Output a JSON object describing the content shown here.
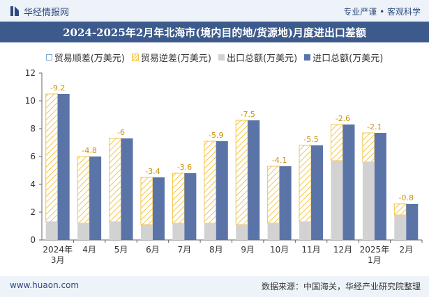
{
  "header": {
    "brand": "华经情报网",
    "tagline": "专业严谨 • 客观科学"
  },
  "title": "2024-2025年2月年北海市(境内目的地/货源地)月度进出口差额",
  "footer": {
    "website": "www.huaon.com",
    "source": "数据来源：中国海关，华经产业研究院整理"
  },
  "colors": {
    "export": "#d2d2d2",
    "import": "#5b74a8",
    "deficit_hatch": "#f2c54a",
    "surplus_border": "#7aa6d6",
    "title_bg": "#3d5a8c",
    "topbar_bg": "#eef3fa"
  },
  "chart_data": {
    "type": "bar",
    "title": "2024-2025年2月年北海市(境内目的地/货源地)月度进出口差额",
    "legend": [
      "贸易顺差(万美元)",
      "贸易逆差(万美元)",
      "出口总额(万美元)",
      "进口总额(万美元)"
    ],
    "legend_position": "top",
    "categories": [
      [
        "2024年",
        "3月"
      ],
      [
        "4月"
      ],
      [
        "5月"
      ],
      [
        "6月"
      ],
      [
        "7月"
      ],
      [
        "8月"
      ],
      [
        "9月"
      ],
      [
        "10月"
      ],
      [
        "11月"
      ],
      [
        "12月"
      ],
      [
        "2025年",
        "1月"
      ],
      [
        "2月"
      ]
    ],
    "series": [
      {
        "name": "出口总额(万美元)",
        "values": [
          1.3,
          1.2,
          1.3,
          1.1,
          1.2,
          1.2,
          1.1,
          1.2,
          1.3,
          5.7,
          5.6,
          1.8
        ]
      },
      {
        "name": "进口总额(万美元)",
        "values": [
          10.5,
          6.0,
          7.3,
          4.5,
          4.8,
          7.1,
          8.6,
          5.3,
          6.8,
          8.3,
          7.7,
          2.6
        ]
      },
      {
        "name": "贸易逆差(万美元)",
        "values": [
          -9.2,
          -4.8,
          -6,
          -3.4,
          -3.6,
          -5.9,
          -7.5,
          -4.1,
          -5.5,
          -2.6,
          -2.1,
          -0.8
        ]
      }
    ],
    "data_labels": [
      "-9.2",
      "-4.8",
      "-6",
      "-3.4",
      "-3.6",
      "-5.9",
      "-7.5",
      "-4.1",
      "-5.5",
      "-2.6",
      "-2.1",
      "-0.8"
    ],
    "y_ticks": [
      "0",
      "2",
      "4",
      "6",
      "8",
      "10",
      "12"
    ],
    "ylim": [
      0,
      12
    ],
    "xlabel": "",
    "ylabel": "",
    "grid": false
  }
}
